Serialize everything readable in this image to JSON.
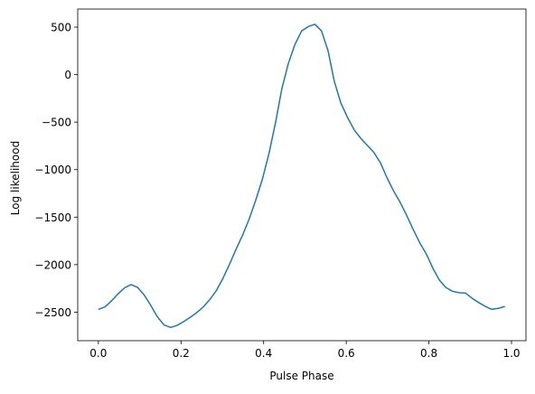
{
  "chart_data": {
    "type": "line",
    "title": "",
    "xlabel": "Pulse Phase",
    "ylabel": "Log likelihood",
    "xlim": [
      -0.05,
      1.035
    ],
    "ylim": [
      -2800,
      690
    ],
    "grid": false,
    "x_ticks": [
      0.0,
      0.2,
      0.4,
      0.6,
      0.8,
      1.0
    ],
    "x_tick_labels": [
      "0.0",
      "0.2",
      "0.4",
      "0.6",
      "0.8",
      "1.0"
    ],
    "y_ticks": [
      -2500,
      -2000,
      -1500,
      -1000,
      -500,
      0,
      500
    ],
    "y_tick_labels": [
      "−2500",
      "−2000",
      "−1500",
      "−1000",
      "−500",
      "0",
      "500"
    ],
    "series": [
      {
        "color": "#1f77b4",
        "x": [
          0.0,
          0.016,
          0.032,
          0.047,
          0.063,
          0.079,
          0.095,
          0.111,
          0.127,
          0.143,
          0.159,
          0.175,
          0.19,
          0.206,
          0.222,
          0.238,
          0.254,
          0.27,
          0.286,
          0.302,
          0.318,
          0.333,
          0.349,
          0.365,
          0.381,
          0.397,
          0.413,
          0.429,
          0.444,
          0.46,
          0.476,
          0.492,
          0.508,
          0.524,
          0.54,
          0.556,
          0.571,
          0.587,
          0.603,
          0.619,
          0.635,
          0.651,
          0.667,
          0.683,
          0.698,
          0.714,
          0.73,
          0.746,
          0.762,
          0.778,
          0.794,
          0.81,
          0.825,
          0.841,
          0.857,
          0.873,
          0.889,
          0.905,
          0.921,
          0.937,
          0.952,
          0.968,
          0.984
        ],
        "y": [
          -2470,
          -2445,
          -2380,
          -2310,
          -2245,
          -2210,
          -2240,
          -2320,
          -2430,
          -2550,
          -2635,
          -2660,
          -2640,
          -2600,
          -2555,
          -2505,
          -2445,
          -2365,
          -2270,
          -2140,
          -1990,
          -1840,
          -1690,
          -1520,
          -1320,
          -1100,
          -830,
          -500,
          -150,
          120,
          320,
          460,
          505,
          530,
          460,
          250,
          -70,
          -300,
          -450,
          -580,
          -670,
          -745,
          -820,
          -930,
          -1080,
          -1220,
          -1340,
          -1480,
          -1630,
          -1770,
          -1890,
          -2040,
          -2160,
          -2240,
          -2280,
          -2295,
          -2300,
          -2355,
          -2400,
          -2440,
          -2470,
          -2460,
          -2440
        ]
      }
    ]
  }
}
